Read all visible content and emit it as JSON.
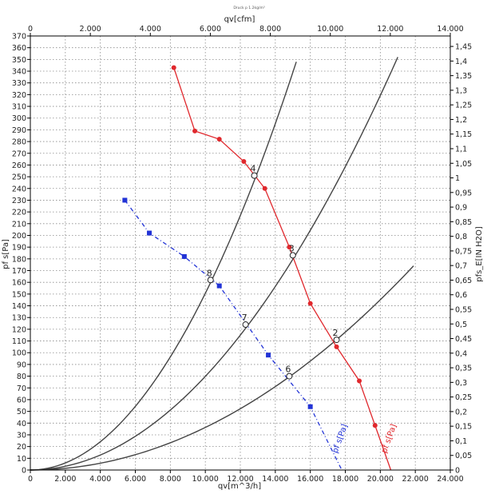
{
  "title": "Druck p 1.2kg/m³",
  "colors": {
    "red_series": "#e0282d",
    "blue_series": "#2233d6",
    "system_curve": "#444444",
    "grid": "#8a8a8a"
  },
  "chart_data": {
    "type": "line",
    "title": "Druck p 1.2kg/m³",
    "xlabel": "qv[m^3/h]",
    "ylabel": "pf s[Pa]",
    "x_top_label": "qv[cfm]",
    "y_right_label": "pfs_E[IN H2O]",
    "xlim": [
      0,
      24000
    ],
    "ylim": [
      0,
      370
    ],
    "x_top_lim": [
      0,
      14000
    ],
    "y_right_lim": [
      0,
      1.4858
    ],
    "grid": true,
    "x_ticks": [
      0,
      2000,
      4000,
      6000,
      8000,
      10000,
      12000,
      14000,
      16000,
      18000,
      20000,
      22000,
      24000
    ],
    "x_tick_labels": [
      "0",
      "2.000",
      "4.000",
      "6.000",
      "8.000",
      "10.000",
      "12.000",
      "14.000",
      "16.000",
      "18.000",
      "20.000",
      "22.000",
      "24.000"
    ],
    "x_top_ticks": [
      0,
      2000,
      4000,
      6000,
      8000,
      10000,
      12000,
      14000
    ],
    "x_top_tick_labels": [
      "0",
      "2.000",
      "4.000",
      "6.000",
      "8.000",
      "10.000",
      "12.000",
      "14.000"
    ],
    "y_ticks": [
      0,
      10,
      20,
      30,
      40,
      50,
      60,
      70,
      80,
      90,
      100,
      110,
      120,
      130,
      140,
      150,
      160,
      170,
      180,
      190,
      200,
      210,
      220,
      230,
      240,
      250,
      260,
      270,
      280,
      290,
      300,
      310,
      320,
      330,
      340,
      350,
      360,
      370
    ],
    "y_right_ticks": [
      0,
      0.05,
      0.1,
      0.15,
      0.2,
      0.25,
      0.3,
      0.35,
      0.4,
      0.45,
      0.5,
      0.55,
      0.6,
      0.65,
      0.7,
      0.75,
      0.8,
      0.85,
      0.9,
      0.95,
      1,
      1.05,
      1.1,
      1.15,
      1.2,
      1.25,
      1.3,
      1.35,
      1.4,
      1.45
    ],
    "y_right_tick_labels": [
      "0",
      "0,05",
      "0,1",
      "0,15",
      "0,2",
      "0,25",
      "0,3",
      "0,35",
      "0,4",
      "0,45",
      "0,5",
      "0,55",
      "0,6",
      "0,65",
      "0,7",
      "0,75",
      "0,8",
      "0,85",
      "0,9",
      "0,95",
      "1",
      "1,05",
      "1,1",
      "1,15",
      "1,2",
      "1,25",
      "1,3",
      "1,35",
      "1,4",
      "1,45"
    ],
    "series": [
      {
        "name": "pf s[Pa]",
        "color": "#e0282d",
        "marker": "circle",
        "x": [
          8200,
          9400,
          10800,
          12200,
          13400,
          14800,
          16000,
          17500,
          18800,
          19700,
          20600
        ],
        "y": [
          343,
          289,
          282,
          263,
          240,
          190,
          142,
          105,
          76,
          38,
          0
        ]
      },
      {
        "name": "pf s[Pa]",
        "color": "#2233d6",
        "marker": "square",
        "x": [
          5400,
          6800,
          8800,
          10800,
          13600,
          16000,
          17800
        ],
        "y": [
          230,
          202,
          182,
          157,
          98,
          54,
          0
        ]
      }
    ],
    "system_curves": [
      {
        "k": 4.7e-06,
        "x_end": 15200,
        "y_end": 348
      },
      {
        "k": 1.15e-06,
        "x_end": 21000,
        "y_end": 352
      },
      {
        "k": 4e-07,
        "x_end": 21900,
        "y_end": 174
      }
    ],
    "operating_points": [
      {
        "label": "4",
        "x": 12800,
        "y": 251
      },
      {
        "label": "3",
        "x": 15000,
        "y": 183
      },
      {
        "label": "2",
        "x": 17500,
        "y": 111
      },
      {
        "label": "8",
        "x": 10300,
        "y": 162
      },
      {
        "label": "7",
        "x": 12300,
        "y": 124
      },
      {
        "label": "6",
        "x": 14800,
        "y": 80
      }
    ]
  }
}
